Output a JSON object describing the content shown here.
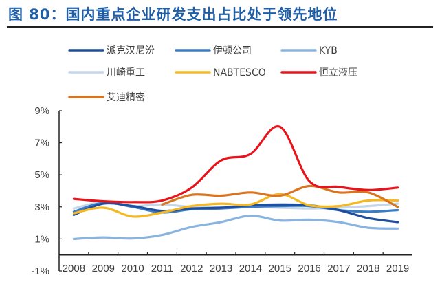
{
  "title": "图 80：国内重点企业研发支出占比处于领先地位",
  "chart_data": {
    "type": "line",
    "title": "图 80：国内重点企业研发支出占比处于领先地位",
    "xlabel": "",
    "ylabel": "",
    "categories": [
      "2008",
      "2009",
      "2010",
      "2011",
      "2012",
      "2013",
      "2014",
      "2015",
      "2016",
      "2017",
      "2018",
      "2019"
    ],
    "ylim": [
      -1,
      9
    ],
    "y_ticks": [
      -1,
      1,
      3,
      5,
      7,
      9
    ],
    "y_tick_labels": [
      "-1%",
      "1%",
      "3%",
      "5%",
      "7%",
      "9%"
    ],
    "grid": false,
    "legend_position": "top",
    "series": [
      {
        "name": "派克汉尼汾",
        "color": "#1f4e9c",
        "values": [
          2.5,
          3.2,
          3.05,
          2.75,
          2.9,
          2.95,
          3.1,
          3.15,
          3.1,
          2.8,
          2.3,
          2.05
        ]
      },
      {
        "name": "伊顿公司",
        "color": "#3a7cc6",
        "values": [
          2.7,
          3.25,
          3.0,
          2.65,
          2.85,
          2.9,
          3.0,
          3.05,
          3.05,
          2.8,
          2.7,
          2.8
        ]
      },
      {
        "name": "KYB",
        "color": "#8ab4e0",
        "values": [
          1.0,
          1.1,
          1.03,
          1.25,
          1.75,
          2.05,
          2.45,
          2.15,
          2.2,
          2.05,
          1.7,
          1.65
        ]
      },
      {
        "name": "川崎重工",
        "color": "#c5d6ea",
        "values": [
          2.9,
          3.3,
          3.05,
          3.15,
          3.0,
          3.0,
          3.0,
          2.95,
          2.9,
          2.95,
          3.05,
          3.2
        ]
      },
      {
        "name": "NABTESCO",
        "color": "#f5b820",
        "values": [
          2.6,
          2.95,
          2.4,
          2.65,
          3.05,
          3.2,
          3.15,
          3.8,
          3.1,
          3.05,
          3.4,
          3.4
        ]
      },
      {
        "name": "恒立液压",
        "color": "#e8131b",
        "values": [
          3.5,
          3.35,
          3.3,
          3.4,
          4.2,
          5.9,
          6.3,
          8.0,
          4.6,
          4.25,
          4.05,
          4.2
        ]
      },
      {
        "name": "艾迪精密",
        "color": "#d97420",
        "values": [
          null,
          null,
          null,
          3.15,
          3.75,
          3.7,
          3.9,
          3.7,
          4.3,
          3.9,
          3.9,
          3.0
        ]
      }
    ]
  }
}
